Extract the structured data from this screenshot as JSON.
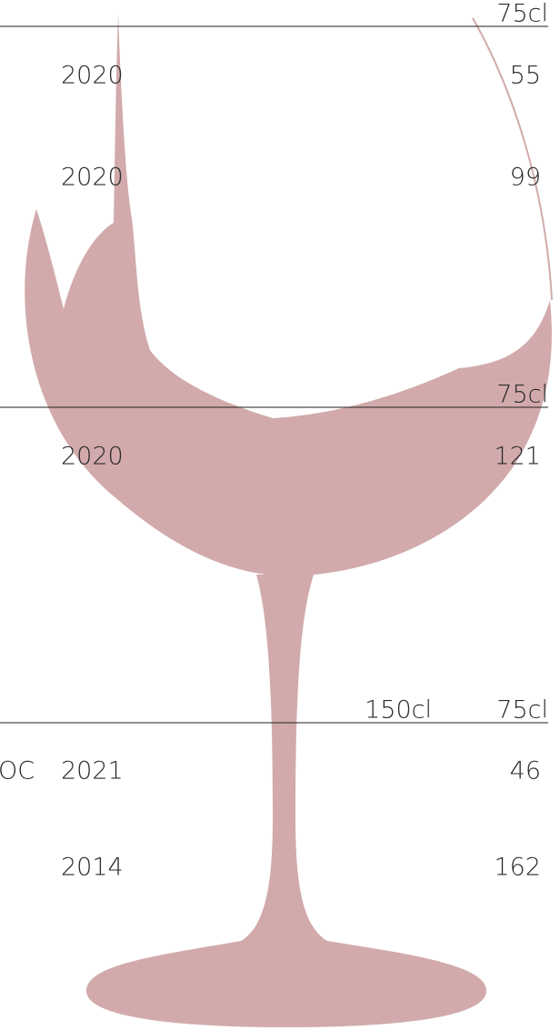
{
  "sections": [
    {
      "sizes": [
        "75cl"
      ],
      "rows": [
        {
          "vintage": "2020",
          "price": "55"
        },
        {
          "vintage": "2020",
          "price": "99"
        }
      ]
    },
    {
      "sizes": [
        "75cl"
      ],
      "rows": [
        {
          "vintage": "2020",
          "price": "121"
        }
      ]
    },
    {
      "sizes": [
        "150cl",
        "75cl"
      ],
      "rows": [
        {
          "name": "OC",
          "vintage": "2021",
          "price": "46"
        },
        {
          "vintage": "2014",
          "price": "162"
        }
      ]
    }
  ]
}
